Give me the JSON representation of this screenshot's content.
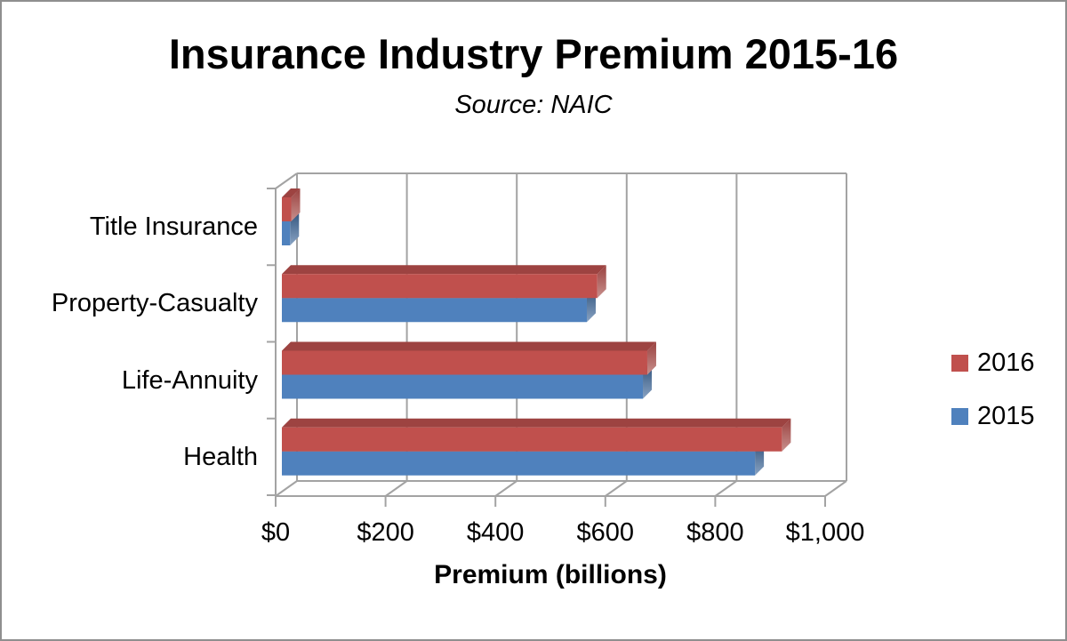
{
  "chart_data": {
    "type": "bar",
    "orientation": "horizontal",
    "style": "3d",
    "title": "Insurance Industry Premium 2015-16",
    "subtitle": "Source: NAIC",
    "xlabel": "Premium (billions)",
    "categories": [
      "Title Insurance",
      "Property-Casualty",
      "Life-Annuity",
      "Health"
    ],
    "series": [
      {
        "name": "2016",
        "color": "#C0504D",
        "top_color": "#9D4341",
        "side_color_dark": "#9A4240",
        "side_color_light": "#C8908D",
        "values": [
          17,
          574,
          665,
          910
        ]
      },
      {
        "name": "2015",
        "color": "#4F81BD",
        "top_color": "#38597F",
        "side_color_dark": "#33567F",
        "side_color_light": "#89A3C3",
        "values": [
          15,
          555,
          657,
          861
        ]
      }
    ],
    "xlim": [
      0,
      1000
    ],
    "xticks": [
      0,
      200,
      400,
      600,
      800,
      1000
    ],
    "xtick_labels": [
      "$0",
      "$200",
      "$400",
      "$600",
      "$800",
      "$1,000"
    ],
    "grid": "vertical",
    "legend_position": "middle-right",
    "axis_line_color": "#A3A3A3",
    "text_color": "#000000"
  }
}
